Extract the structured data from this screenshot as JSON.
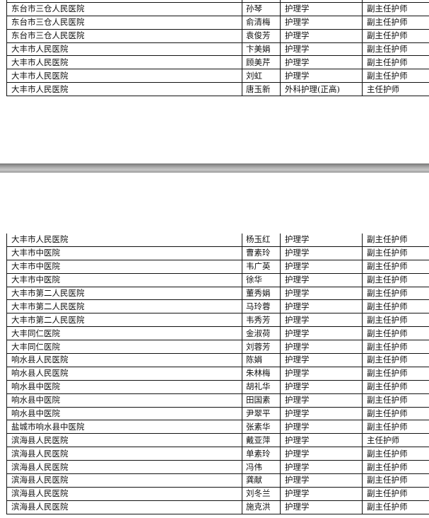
{
  "page1_rows": [
    {
      "hospital": "",
      "name": "",
      "specialty": "",
      "title": ""
    },
    {
      "hospital": "东台市三仓人民医院",
      "name": "孙琴",
      "specialty": "护理学",
      "title": "副主任护师"
    },
    {
      "hospital": "东台市三仓人民医院",
      "name": "俞清梅",
      "specialty": "护理学",
      "title": "副主任护师"
    },
    {
      "hospital": "东台市三仓人民医院",
      "name": "袁俊芳",
      "specialty": "护理学",
      "title": "副主任护师"
    },
    {
      "hospital": "大丰市人民医院",
      "name": "卞美娟",
      "specialty": "护理学",
      "title": "副主任护师"
    },
    {
      "hospital": "大丰市人民医院",
      "name": "顾美芹",
      "specialty": "护理学",
      "title": "副主任护师"
    },
    {
      "hospital": "大丰市人民医院",
      "name": "刘虹",
      "specialty": "护理学",
      "title": "副主任护师"
    },
    {
      "hospital": "大丰市人民医院",
      "name": "唐玉新",
      "specialty": "外科护理(正高)",
      "title": "主任护师"
    }
  ],
  "page2_rows": [
    {
      "hospital": "大丰市人民医院",
      "name": "杨玉红",
      "specialty": "护理学",
      "title": "副主任护师"
    },
    {
      "hospital": "大丰市中医院",
      "name": "曹素玲",
      "specialty": "护理学",
      "title": "副主任护师"
    },
    {
      "hospital": "大丰市中医院",
      "name": "韦广英",
      "specialty": "护理学",
      "title": "副主任护师"
    },
    {
      "hospital": "大丰市中医院",
      "name": "徐华",
      "specialty": "护理学",
      "title": "副主任护师"
    },
    {
      "hospital": "大丰市第二人民医院",
      "name": "董秀娟",
      "specialty": "护理学",
      "title": "副主任护师"
    },
    {
      "hospital": "大丰市第二人民医院",
      "name": "马玲蓉",
      "specialty": "护理学",
      "title": "副主任护师"
    },
    {
      "hospital": "大丰市第二人民医院",
      "name": "韦秀芳",
      "specialty": "护理学",
      "title": "副主任护师"
    },
    {
      "hospital": "大丰同仁医院",
      "name": "金淑荷",
      "specialty": "护理学",
      "title": "副主任护师"
    },
    {
      "hospital": "大丰同仁医院",
      "name": "刘蓉芳",
      "specialty": "护理学",
      "title": "副主任护师"
    },
    {
      "hospital": "响水县人民医院",
      "name": "陈娟",
      "specialty": "护理学",
      "title": "副主任护师"
    },
    {
      "hospital": "响水县人民医院",
      "name": "朱林梅",
      "specialty": "护理学",
      "title": "副主任护师"
    },
    {
      "hospital": "响水县中医院",
      "name": "胡礼华",
      "specialty": "护理学",
      "title": "副主任护师"
    },
    {
      "hospital": "响水县中医院",
      "name": "田国素",
      "specialty": "护理学",
      "title": "副主任护师"
    },
    {
      "hospital": "响水县中医院",
      "name": "尹翠平",
      "specialty": "护理学",
      "title": "副主任护师"
    },
    {
      "hospital": "盐城市响水县中医院",
      "name": "张素华",
      "specialty": "护理学",
      "title": "副主任护师"
    },
    {
      "hospital": "滨海县人民医院",
      "name": "戴亚萍",
      "specialty": "护理学",
      "title": "主任护师"
    },
    {
      "hospital": "滨海县人民医院",
      "name": "单素玲",
      "specialty": "护理学",
      "title": "副主任护师"
    },
    {
      "hospital": "滨海县人民医院",
      "name": "冯伟",
      "specialty": "护理学",
      "title": "副主任护师"
    },
    {
      "hospital": "滨海县人民医院",
      "name": "龚献",
      "specialty": "护理学",
      "title": "副主任护师"
    },
    {
      "hospital": "滨海县人民医院",
      "name": "刘冬兰",
      "specialty": "护理学",
      "title": "副主任护师"
    },
    {
      "hospital": "滨海县人民医院",
      "name": "施克洪",
      "specialty": "护理学",
      "title": "副主任护师"
    }
  ]
}
